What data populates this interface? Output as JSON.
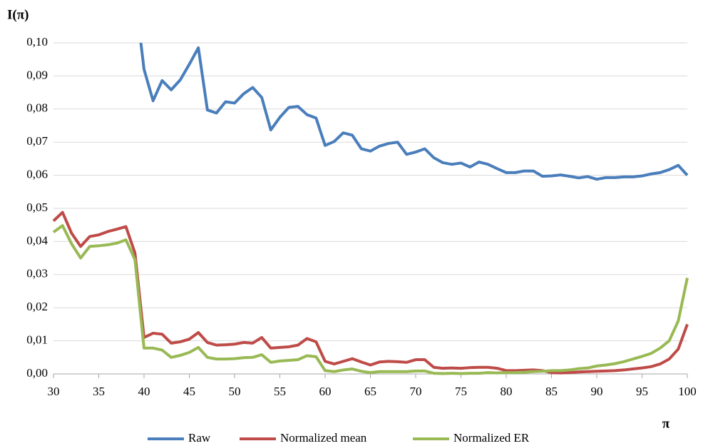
{
  "chart_data": {
    "type": "line",
    "y_label": "I(π)",
    "x_label": "π",
    "x": [
      30,
      31,
      32,
      33,
      34,
      35,
      36,
      37,
      38,
      39,
      40,
      41,
      42,
      43,
      44,
      45,
      46,
      47,
      48,
      49,
      50,
      51,
      52,
      53,
      54,
      55,
      56,
      57,
      58,
      59,
      60,
      61,
      62,
      63,
      64,
      65,
      66,
      67,
      68,
      69,
      70,
      71,
      72,
      73,
      74,
      75,
      76,
      77,
      78,
      79,
      80,
      81,
      82,
      83,
      84,
      85,
      86,
      87,
      88,
      89,
      90,
      91,
      92,
      93,
      94,
      95,
      96,
      97,
      98,
      99,
      100
    ],
    "series": [
      {
        "name": "Raw",
        "color": "#4a7ebb",
        "values": [
          null,
          null,
          null,
          null,
          null,
          null,
          null,
          null,
          null,
          0.115,
          0.092,
          0.0825,
          0.0886,
          0.0858,
          0.0888,
          0.0935,
          0.0985,
          0.0797,
          0.0788,
          0.0822,
          0.0818,
          0.0846,
          0.0865,
          0.0835,
          0.0737,
          0.0775,
          0.0805,
          0.0808,
          0.0783,
          0.0773,
          0.069,
          0.0702,
          0.0728,
          0.0721,
          0.068,
          0.0673,
          0.0688,
          0.0696,
          0.07,
          0.0663,
          0.067,
          0.068,
          0.0653,
          0.0638,
          0.0633,
          0.0637,
          0.0625,
          0.064,
          0.0633,
          0.062,
          0.0608,
          0.0608,
          0.0613,
          0.0613,
          0.0597,
          0.0598,
          0.0601,
          0.0597,
          0.0592,
          0.0596,
          0.0588,
          0.0593,
          0.0593,
          0.0595,
          0.0595,
          0.0598,
          0.0604,
          0.0608,
          0.0617,
          0.063,
          0.06
        ]
      },
      {
        "name": "Normalized mean",
        "color": "#be4b48",
        "values": [
          0.0462,
          0.0488,
          0.0425,
          0.0385,
          0.0415,
          0.042,
          0.043,
          0.0437,
          0.0445,
          0.0365,
          0.011,
          0.0123,
          0.012,
          0.0093,
          0.0097,
          0.0105,
          0.0125,
          0.0095,
          0.0087,
          0.0088,
          0.009,
          0.0095,
          0.0093,
          0.011,
          0.0078,
          0.008,
          0.0082,
          0.0087,
          0.0107,
          0.0097,
          0.0038,
          0.003,
          0.0038,
          0.0046,
          0.0036,
          0.0027,
          0.0036,
          0.0038,
          0.0037,
          0.0035,
          0.0043,
          0.0043,
          0.002,
          0.0017,
          0.0018,
          0.0017,
          0.0019,
          0.002,
          0.002,
          0.0017,
          0.001,
          0.001,
          0.0011,
          0.0012,
          0.001,
          0.0004,
          0.0003,
          0.0004,
          0.0006,
          0.0007,
          0.0008,
          0.0009,
          0.001,
          0.0012,
          0.0015,
          0.0018,
          0.0022,
          0.003,
          0.0045,
          0.0075,
          0.015
        ]
      },
      {
        "name": "Normalized ER",
        "color": "#98b954",
        "values": [
          0.0428,
          0.0448,
          0.0393,
          0.035,
          0.0385,
          0.0387,
          0.039,
          0.0395,
          0.0405,
          0.0345,
          0.0078,
          0.0078,
          0.0072,
          0.005,
          0.0056,
          0.0065,
          0.008,
          0.005,
          0.0045,
          0.0045,
          0.0046,
          0.0049,
          0.005,
          0.0058,
          0.0035,
          0.0039,
          0.0041,
          0.0043,
          0.0055,
          0.0052,
          0.001,
          0.0007,
          0.0012,
          0.0015,
          0.0008,
          0.0004,
          0.0007,
          0.0007,
          0.0007,
          0.0007,
          0.0009,
          0.0009,
          0.0002,
          0.0001,
          0.0002,
          0.0001,
          0.0002,
          0.0002,
          0.0004,
          0.0003,
          0.0004,
          0.0004,
          0.0005,
          0.0007,
          0.0008,
          0.001,
          0.001,
          0.0012,
          0.0016,
          0.0018,
          0.0024,
          0.0027,
          0.0031,
          0.0037,
          0.0045,
          0.0053,
          0.0062,
          0.0078,
          0.01,
          0.016,
          0.029
        ]
      }
    ],
    "xlim": [
      30,
      100
    ],
    "xticks": [
      30,
      35,
      40,
      45,
      50,
      55,
      60,
      65,
      70,
      75,
      80,
      85,
      90,
      95,
      100
    ],
    "ylim": [
      0,
      0.1
    ],
    "yticks": [
      {
        "value": 0,
        "label": "0,00"
      },
      {
        "value": 0.01,
        "label": "0,01"
      },
      {
        "value": 0.02,
        "label": "0,02"
      },
      {
        "value": 0.03,
        "label": "0,03"
      },
      {
        "value": 0.04,
        "label": "0,04"
      },
      {
        "value": 0.05,
        "label": "0,05"
      },
      {
        "value": 0.06,
        "label": "0,06"
      },
      {
        "value": 0.07,
        "label": "0,07"
      },
      {
        "value": 0.08,
        "label": "0,08"
      },
      {
        "value": 0.09,
        "label": "0,09"
      },
      {
        "value": 0.1,
        "label": "0,10"
      }
    ],
    "grid": true,
    "legend": "bottom"
  }
}
